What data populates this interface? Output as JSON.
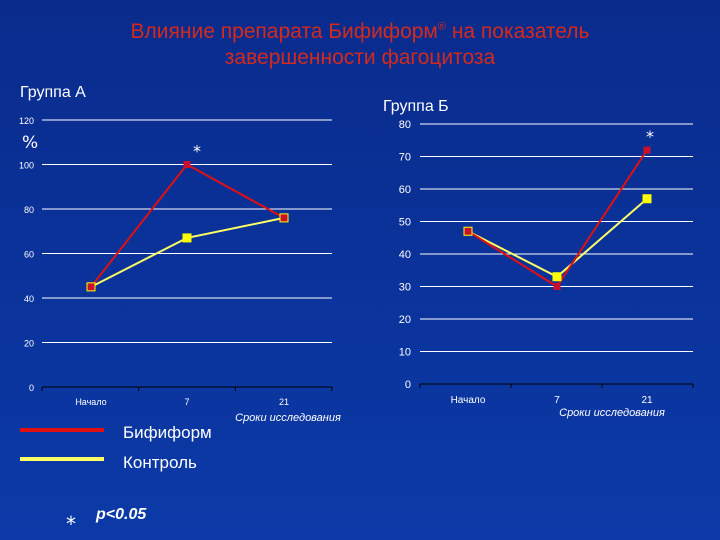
{
  "title": {
    "line1": "Влияние препарата Бифиформ",
    "reg": "®",
    "line1_end": " на показатель",
    "line2": "завершенности фагоцитоза"
  },
  "unit_label": "%",
  "significance": {
    "marker": "*",
    "text": "p<0.05"
  },
  "legend": [
    {
      "name": "Бифиформ",
      "color": "#e01010"
    },
    {
      "name": "Контроль",
      "color": "#ffff66"
    }
  ],
  "chart_data": [
    {
      "type": "line",
      "title": "Группа А",
      "xlabel": "Сроки исследования",
      "categories": [
        "Начало",
        "7",
        "21"
      ],
      "ylim": [
        0,
        120
      ],
      "yticks": [
        0,
        20,
        40,
        60,
        80,
        100,
        120
      ],
      "annotations": [
        {
          "category": "7",
          "text": "*"
        }
      ],
      "series": [
        {
          "name": "Бифиформ",
          "color": "#e01010",
          "marker_color": "#c8102e",
          "values": [
            45,
            100,
            76
          ]
        },
        {
          "name": "Контроль",
          "color": "#ffff66",
          "marker_color": "#ffff00",
          "values": [
            45,
            67,
            76
          ]
        }
      ]
    },
    {
      "type": "line",
      "title": "Группа Б",
      "xlabel": "Сроки исследования",
      "categories": [
        "Начало",
        "7",
        "21"
      ],
      "ylim": [
        0,
        80
      ],
      "yticks": [
        0,
        10,
        20,
        30,
        40,
        50,
        60,
        70,
        80
      ],
      "annotations": [
        {
          "category": "21",
          "text": "*"
        }
      ],
      "series": [
        {
          "name": "Бифиформ",
          "color": "#e01010",
          "marker_color": "#c8102e",
          "values": [
            47,
            30,
            72
          ]
        },
        {
          "name": "Контроль",
          "color": "#ffff66",
          "marker_color": "#ffff00",
          "values": [
            47,
            33,
            57
          ]
        }
      ]
    }
  ],
  "colors": {
    "background": "#0b3aa8",
    "title": "#d42a1e",
    "grid": "#ffffff"
  }
}
